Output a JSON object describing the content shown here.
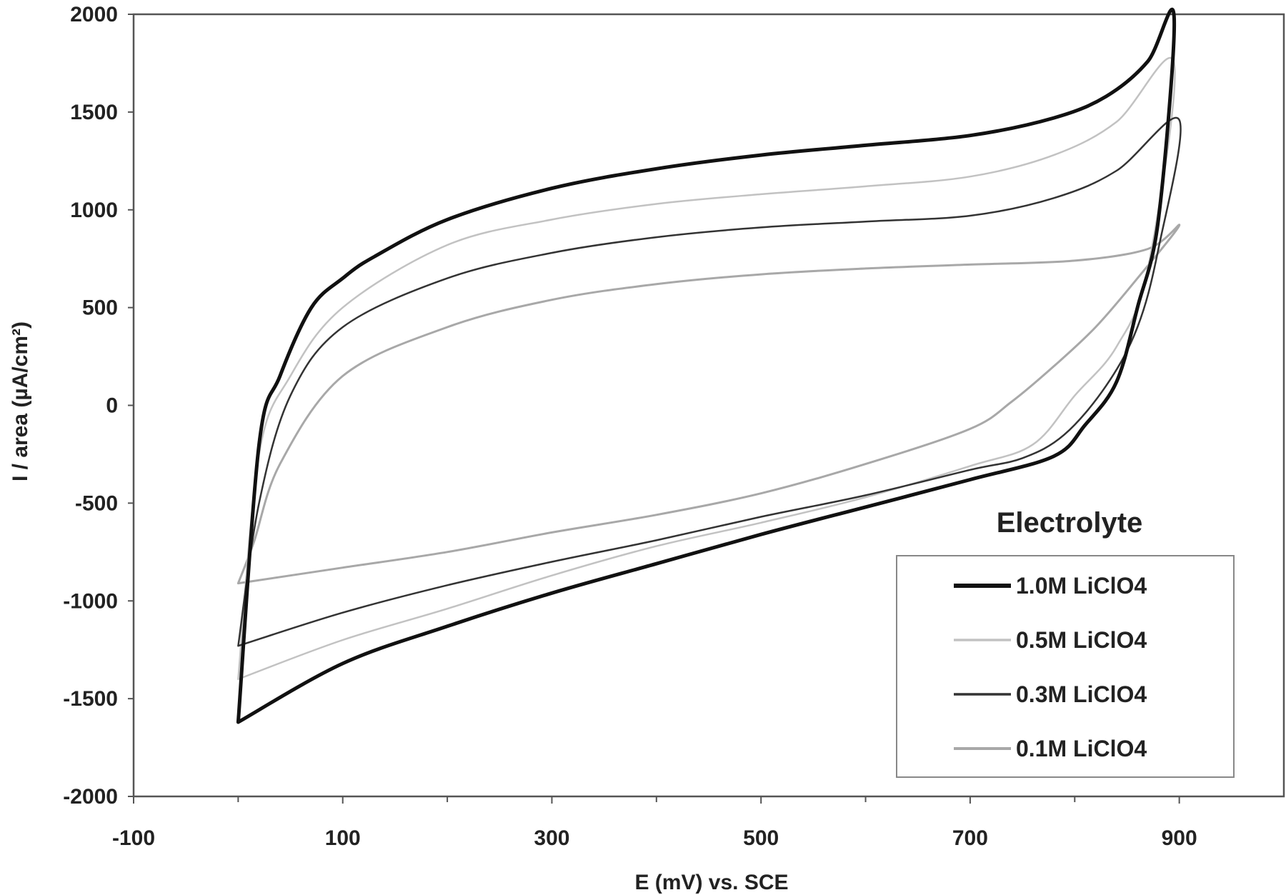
{
  "chart_data": {
    "type": "line",
    "xlabel": "E (mV) vs. SCE",
    "ylabel": "I / area (µA/cm²)",
    "xlim": [
      -100,
      1000
    ],
    "ylim": [
      -2000,
      2000
    ],
    "x_ticks": [
      -100,
      100,
      300,
      500,
      700,
      900
    ],
    "y_ticks": [
      2000,
      1500,
      1000,
      500,
      0,
      -500,
      -1000,
      -1500,
      -2000
    ],
    "grid": false,
    "legend": {
      "title": "Electrolyte",
      "position": "bottom-right"
    },
    "series": [
      {
        "name": "1.0M LiClO4",
        "color": "#111111",
        "width": 5,
        "points": [
          [
            0,
            -1620
          ],
          [
            20,
            -200
          ],
          [
            40,
            150
          ],
          [
            70,
            500
          ],
          [
            100,
            650
          ],
          [
            130,
            760
          ],
          [
            200,
            950
          ],
          [
            300,
            1110
          ],
          [
            400,
            1210
          ],
          [
            500,
            1280
          ],
          [
            600,
            1330
          ],
          [
            700,
            1380
          ],
          [
            780,
            1470
          ],
          [
            830,
            1580
          ],
          [
            870,
            1760
          ],
          [
            895,
            1990
          ],
          [
            880,
            950
          ],
          [
            860,
            500
          ],
          [
            840,
            120
          ],
          [
            810,
            -100
          ],
          [
            780,
            -260
          ],
          [
            700,
            -380
          ],
          [
            600,
            -520
          ],
          [
            500,
            -660
          ],
          [
            400,
            -810
          ],
          [
            300,
            -960
          ],
          [
            200,
            -1130
          ],
          [
            100,
            -1320
          ],
          [
            0,
            -1620
          ]
        ]
      },
      {
        "name": "0.5M LiClO4",
        "color": "#c2c2c2",
        "width": 2.5,
        "points": [
          [
            0,
            -1400
          ],
          [
            20,
            -250
          ],
          [
            50,
            150
          ],
          [
            100,
            500
          ],
          [
            200,
            820
          ],
          [
            300,
            950
          ],
          [
            400,
            1030
          ],
          [
            500,
            1080
          ],
          [
            600,
            1120
          ],
          [
            700,
            1170
          ],
          [
            780,
            1280
          ],
          [
            840,
            1450
          ],
          [
            895,
            1750
          ],
          [
            870,
            700
          ],
          [
            840,
            300
          ],
          [
            800,
            50
          ],
          [
            760,
            -200
          ],
          [
            700,
            -310
          ],
          [
            600,
            -470
          ],
          [
            500,
            -600
          ],
          [
            400,
            -720
          ],
          [
            300,
            -870
          ],
          [
            200,
            -1040
          ],
          [
            100,
            -1200
          ],
          [
            0,
            -1400
          ]
        ]
      },
      {
        "name": "0.3M LiClO4",
        "color": "#333333",
        "width": 2.5,
        "points": [
          [
            0,
            -1230
          ],
          [
            20,
            -500
          ],
          [
            50,
            50
          ],
          [
            100,
            400
          ],
          [
            200,
            650
          ],
          [
            300,
            780
          ],
          [
            400,
            860
          ],
          [
            500,
            910
          ],
          [
            600,
            940
          ],
          [
            700,
            970
          ],
          [
            780,
            1060
          ],
          [
            840,
            1200
          ],
          [
            900,
            1460
          ],
          [
            880,
            800
          ],
          [
            860,
            400
          ],
          [
            830,
            100
          ],
          [
            790,
            -150
          ],
          [
            750,
            -270
          ],
          [
            700,
            -330
          ],
          [
            600,
            -460
          ],
          [
            500,
            -570
          ],
          [
            400,
            -690
          ],
          [
            300,
            -800
          ],
          [
            200,
            -920
          ],
          [
            100,
            -1060
          ],
          [
            0,
            -1230
          ]
        ]
      },
      {
        "name": "0.1M LiClO4",
        "color": "#a8a8a8",
        "width": 3,
        "points": [
          [
            0,
            -910
          ],
          [
            15,
            -700
          ],
          [
            40,
            -300
          ],
          [
            100,
            150
          ],
          [
            200,
            400
          ],
          [
            300,
            540
          ],
          [
            400,
            620
          ],
          [
            500,
            670
          ],
          [
            600,
            700
          ],
          [
            700,
            720
          ],
          [
            800,
            740
          ],
          [
            870,
            800
          ],
          [
            900,
            920
          ],
          [
            860,
            650
          ],
          [
            820,
            400
          ],
          [
            780,
            200
          ],
          [
            740,
            20
          ],
          [
            700,
            -120
          ],
          [
            600,
            -300
          ],
          [
            500,
            -450
          ],
          [
            400,
            -560
          ],
          [
            300,
            -650
          ],
          [
            200,
            -750
          ],
          [
            100,
            -830
          ],
          [
            0,
            -910
          ]
        ]
      }
    ]
  }
}
